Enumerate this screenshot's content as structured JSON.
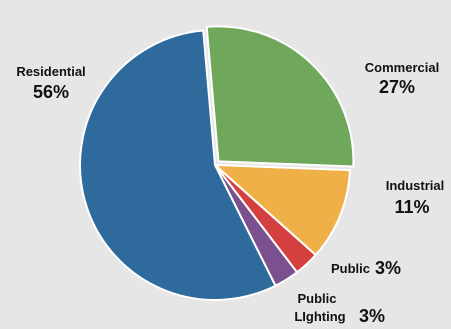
{
  "chart_data": {
    "type": "pie",
    "title": "",
    "slices": [
      {
        "label": "Residential",
        "value": 56,
        "pct_label": "56%",
        "color": "#2e6a9c"
      },
      {
        "label": "Commercial",
        "value": 27,
        "pct_label": "27%",
        "color": "#6fa85a"
      },
      {
        "label": "Industrial",
        "value": 11,
        "pct_label": "11%",
        "color": "#efb047"
      },
      {
        "label": "Public",
        "value": 3,
        "pct_label": "3%",
        "color": "#d3403f"
      },
      {
        "label": "Public LIghting",
        "label_lines": [
          "Public",
          "LIghting"
        ],
        "value": 3,
        "pct_label": "3%",
        "color": "#7b508f"
      }
    ],
    "exploded_slice": "Commercial",
    "background": "#e6e6e6",
    "separator_color": "#ffffff"
  }
}
